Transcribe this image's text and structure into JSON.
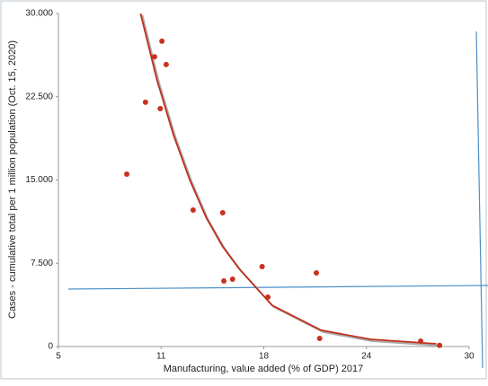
{
  "chart_data": {
    "type": "scatter",
    "x_label": "Manufacturing, value added (% of GDP) 2017",
    "y_label": "Cases - cumulative total per 1 million population (Oct. 15, 2020)",
    "xlim": [
      5,
      30
    ],
    "xticks": [
      5,
      {
        "value": 11.25,
        "label": "11"
      },
      {
        "value": 17.5,
        "label": "18"
      },
      {
        "value": 23.75,
        "label": "24"
      },
      30
    ],
    "ylim": [
      0,
      30000
    ],
    "yticks": [
      0,
      {
        "value": 7500,
        "label": "7.500"
      },
      {
        "value": 15000,
        "label": "15.000"
      },
      {
        "value": 22500,
        "label": "22.500"
      },
      {
        "value": 30000,
        "label": "30.000"
      }
    ],
    "color": "#c8321e",
    "x": [
      9.16,
      10.3,
      10.85,
      11.3,
      11.2,
      11.56,
      13.2,
      15.0,
      15.07,
      15.6,
      17.4,
      17.75,
      20.7,
      20.9,
      27.05,
      28.2
    ],
    "values": [
      15525,
      22000,
      26100,
      27500,
      21430,
      25400,
      12290,
      12050,
      5900,
      6065,
      7200,
      4450,
      6630,
      730,
      485,
      100
    ],
    "trend": {
      "color": "#c0301c",
      "x": [
        10,
        11,
        12,
        13,
        14,
        15,
        16,
        18,
        21,
        24,
        28
      ],
      "values": [
        30000,
        24000,
        19080,
        15000,
        11600,
        9000,
        7000,
        3720,
        1460,
        650,
        240
      ]
    }
  }
}
